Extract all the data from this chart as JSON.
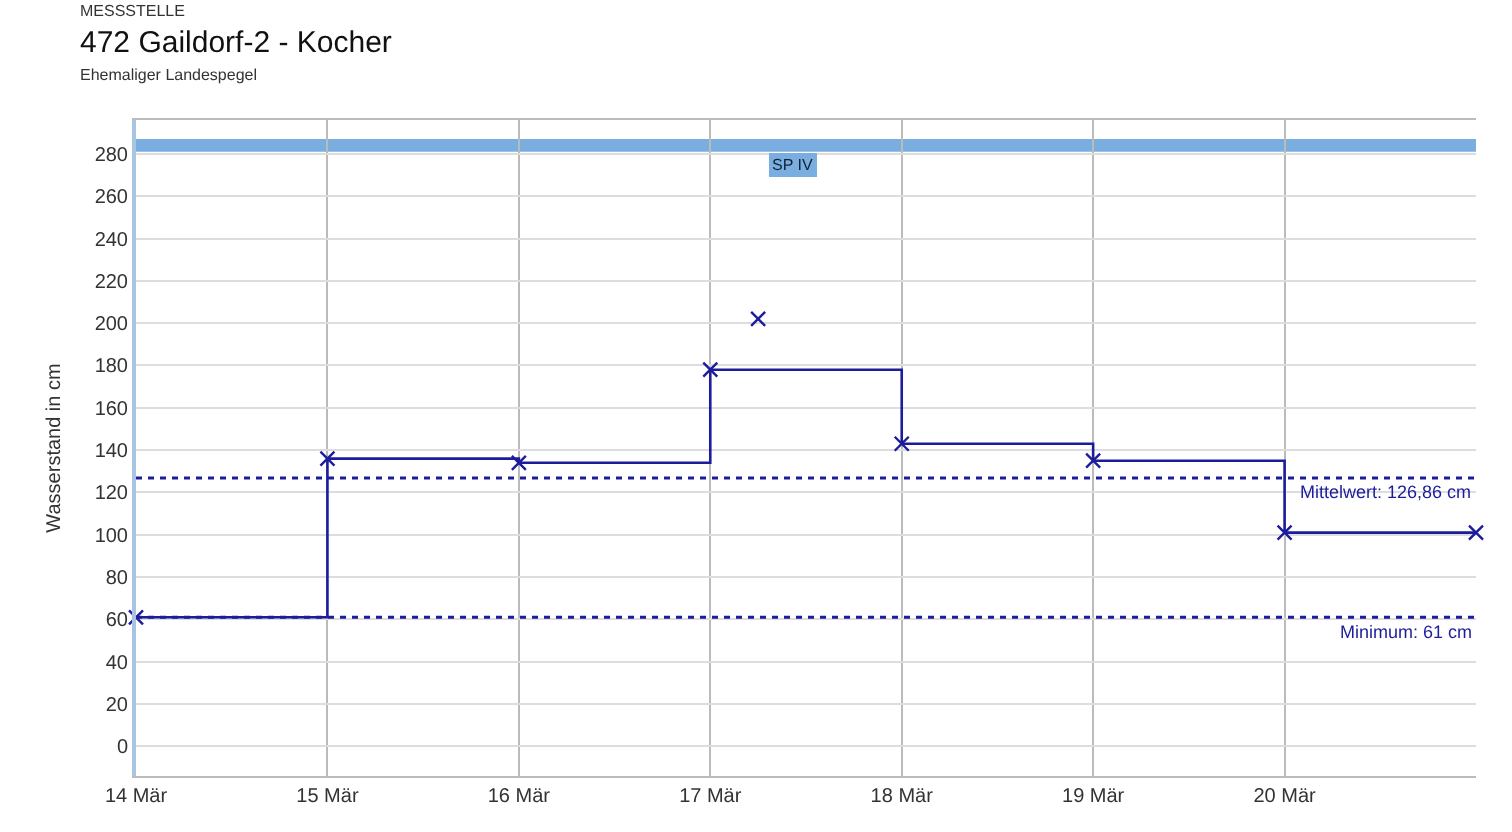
{
  "chart_data": {
    "type": "step",
    "title": "472 Gaildorf-2 - Kocher",
    "subtitle": "Ehemaliger Landespegel",
    "annotations": [
      "MESSSTELLE"
    ],
    "ylabel": "Wasserstand in cm",
    "series": [
      {
        "color": "#1c1c9c",
        "x": [
          "--03-14",
          "--03-15",
          "--03-16",
          "--03-17",
          "--03-18",
          "--03-19",
          "--03-20",
          "--03-21"
        ],
        "values": [
          61,
          136,
          134,
          178,
          143,
          135,
          101,
          101
        ],
        "marker": "cross"
      },
      {
        "type": "scatter",
        "color": "#1c1c9c",
        "x": [
          "--03-17T06:00"
        ],
        "values": [
          202
        ],
        "marker": "cross"
      }
    ],
    "xlim": [
      "--03-14",
      "--03-21"
    ],
    "xticks": [
      {
        "value": "--03-14",
        "label": "14 Mär"
      },
      {
        "value": "--03-15",
        "label": "15 Mär"
      },
      {
        "value": "--03-16",
        "label": "16 Mär"
      },
      {
        "value": "--03-17",
        "label": "17 Mär"
      },
      {
        "value": "--03-18",
        "label": "18 Mär"
      },
      {
        "value": "--03-19",
        "label": "19 Mär"
      },
      {
        "value": "--03-20",
        "label": "20 Mär"
      }
    ],
    "ylim": [
      -14,
      296
    ],
    "yticks": [
      0,
      20,
      40,
      60,
      80,
      100,
      120,
      140,
      160,
      180,
      200,
      220,
      240,
      260,
      280
    ],
    "ref_lines": [
      {
        "axis": "y",
        "value": 126.86,
        "label": "Mittelwert: 126,86 cm",
        "color": "#1c1c9c",
        "line_style": "dotted"
      },
      {
        "axis": "y",
        "value": 61,
        "label": "Minimum: 61 cm",
        "color": "#1c1c9c",
        "line_style": "dotted"
      }
    ],
    "bands": [
      {
        "axis": "y",
        "from": 281,
        "to": 287,
        "label": "SP IV",
        "color": "#7aaee0"
      }
    ],
    "grid": true
  }
}
